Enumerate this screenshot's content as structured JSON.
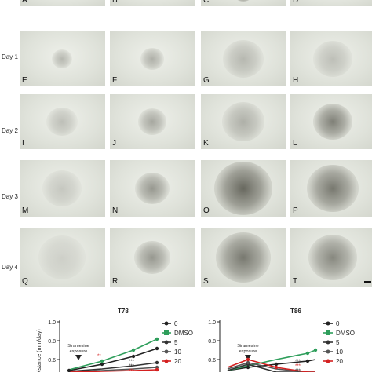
{
  "row_labels": [
    "Day 1",
    "Day 2",
    "Day 3",
    "Day 4"
  ],
  "panel_letters": [
    "A",
    "B",
    "C",
    "D",
    "E",
    "F",
    "G",
    "H",
    "I",
    "J",
    "K",
    "L",
    "M",
    "N",
    "O",
    "P",
    "Q",
    "R",
    "S",
    "T"
  ],
  "group_labels": [
    "T78",
    "T86"
  ],
  "chart_data": [
    {
      "type": "line",
      "title": "",
      "ylabel": "Distance (mm/day)",
      "annotation": "Siramesine exposure",
      "significance_marks": [
        "**",
        "***",
        "***",
        "***"
      ],
      "series": [
        {
          "name": "0",
          "color": "#222222"
        },
        {
          "name": "DMSO",
          "color": "#2e9e5b"
        },
        {
          "name": "5",
          "color": "#333333"
        },
        {
          "name": "10",
          "color": "#555555"
        },
        {
          "name": "20",
          "color": "#d42020"
        }
      ],
      "y_tick_labels": [
        "1.0",
        "0.8",
        "0.6"
      ]
    },
    {
      "type": "line",
      "title": "",
      "ylabel": "Distance (mm/day)",
      "annotation": "Siramesine exposure",
      "significance_marks": [
        "***",
        "***",
        "***"
      ],
      "series": [
        {
          "name": "0",
          "color": "#222222"
        },
        {
          "name": "DMSO",
          "color": "#2e9e5b"
        },
        {
          "name": "5",
          "color": "#333333"
        },
        {
          "name": "10",
          "color": "#555555"
        },
        {
          "name": "20",
          "color": "#d42020"
        }
      ],
      "y_tick_labels": [
        "1.0",
        "0.8",
        "0.6"
      ]
    }
  ]
}
